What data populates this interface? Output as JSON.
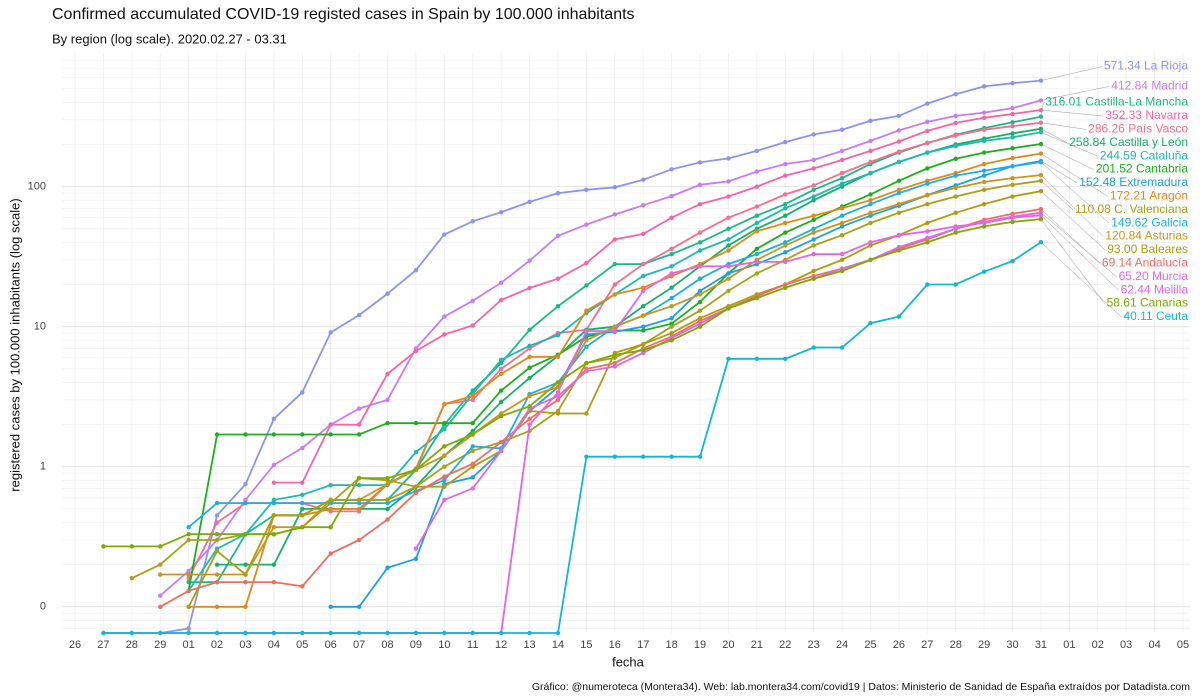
{
  "chart_data": {
    "type": "line",
    "title": "Confirmed accumulated COVID-19 registed cases in Spain by 100.000 inhabitants",
    "subtitle": "By region (log scale). 2020.02.27 - 03.31",
    "x_label": "fecha",
    "y_label": "registered cases  by 100.000 inhabitants (log scale)",
    "caption": "Gráfico: @numeroteca (Montera34). Web: lab.montera34.com/covid19 | Datos: Ministerio de Sanidad de España extraídos por Datadista.com",
    "log_scale": true,
    "grid": true,
    "categories": [
      "26",
      "27",
      "28",
      "29",
      "01",
      "02",
      "03",
      "04",
      "05",
      "06",
      "07",
      "08",
      "09",
      "10",
      "11",
      "12",
      "13",
      "14",
      "15",
      "16",
      "17",
      "18",
      "19",
      "20",
      "21",
      "22",
      "23",
      "24",
      "25",
      "26",
      "27",
      "28",
      "29",
      "30",
      "31",
      "01",
      "02",
      "03",
      "04",
      "05"
    ],
    "ylim": [
      0.065,
      900
    ],
    "yticks": [
      {
        "value": 0.1,
        "label": "0"
      },
      1,
      10,
      100
    ],
    "series": [
      {
        "name": "La Rioja",
        "color": "#8C94F0",
        "values": [
          null,
          null,
          null,
          0.065,
          0.07,
          0.45,
          0.75,
          2.2,
          3.4,
          9.1,
          12.1,
          17.2,
          25.3,
          45.5,
          56.6,
          65.7,
          77.8,
          89.9,
          95,
          99,
          112,
          133,
          149,
          159,
          180,
          208,
          236,
          255,
          295,
          320,
          392,
          457,
          520,
          548,
          571.34,
          null,
          null,
          null,
          null,
          null
        ]
      },
      {
        "name": "Madrid",
        "color": "#C77CF3",
        "values": [
          null,
          null,
          null,
          0.12,
          0.18,
          0.3,
          0.58,
          1.03,
          1.36,
          2.0,
          2.6,
          3.0,
          7.0,
          11.8,
          15.3,
          20.6,
          29.6,
          44.6,
          53.6,
          63.3,
          73.6,
          85.6,
          103,
          109,
          128,
          145,
          155,
          180,
          212,
          252,
          290,
          320,
          338,
          364,
          412.84,
          null,
          null,
          null,
          null,
          null
        ]
      },
      {
        "name": "Castilla-La Mancha",
        "color": "#1BB98A",
        "values": [
          null,
          null,
          null,
          null,
          0.15,
          0.15,
          0.33,
          0.45,
          0.45,
          0.58,
          0.58,
          0.58,
          0.95,
          2.0,
          3.5,
          5.5,
          9.5,
          14,
          19.7,
          28,
          28,
          33,
          40,
          50,
          62,
          75,
          95,
          115,
          145,
          175,
          205,
          235,
          262,
          288,
          316.01,
          null,
          null,
          null,
          null,
          null
        ]
      },
      {
        "name": "Navarra",
        "color": "#F564A9",
        "values": [
          null,
          null,
          null,
          null,
          null,
          null,
          null,
          0.77,
          0.77,
          2.0,
          2.0,
          4.6,
          6.7,
          8.8,
          10.2,
          15.5,
          18.9,
          22,
          28.5,
          42,
          46,
          60,
          75,
          85,
          100,
          120,
          135,
          155,
          180,
          210,
          250,
          285,
          310,
          330,
          352.33,
          null,
          null,
          null,
          null,
          null
        ]
      },
      {
        "name": "País Vasco",
        "color": "#F2708E",
        "values": [
          null,
          null,
          null,
          null,
          0.16,
          0.4,
          0.55,
          0.55,
          0.55,
          0.48,
          0.48,
          0.75,
          0.97,
          2.8,
          3.0,
          5.0,
          7.0,
          9.0,
          9.5,
          20,
          28,
          36,
          47,
          60,
          72,
          88,
          102,
          125,
          150,
          178,
          205,
          232,
          255,
          270,
          286.26,
          null,
          null,
          null,
          null,
          null
        ]
      },
      {
        "name": "Castilla y León",
        "color": "#16B06A",
        "values": [
          null,
          null,
          null,
          null,
          null,
          0.2,
          0.2,
          0.2,
          0.5,
          0.5,
          0.5,
          0.5,
          0.72,
          1.2,
          1.8,
          2.9,
          4.3,
          6.2,
          9.5,
          10,
          14,
          19,
          27,
          38,
          50,
          62,
          80,
          100,
          125,
          150,
          175,
          200,
          220,
          240,
          258.84,
          null,
          null,
          null,
          null,
          null
        ]
      },
      {
        "name": "Cataluña",
        "color": "#1FB9B0",
        "values": [
          null,
          null,
          null,
          null,
          0.13,
          0.26,
          0.33,
          0.58,
          0.63,
          0.74,
          0.74,
          0.74,
          1.27,
          1.85,
          3.3,
          5.8,
          7.3,
          8.7,
          12.5,
          17,
          23,
          27,
          35,
          42,
          55,
          70,
          85,
          105,
          125,
          150,
          175,
          195,
          212,
          225,
          244.59,
          null,
          null,
          null,
          null,
          null
        ]
      },
      {
        "name": "Cantabria",
        "color": "#1EAF1E",
        "values": [
          null,
          null,
          null,
          null,
          0.13,
          1.7,
          1.7,
          1.7,
          1.7,
          1.7,
          1.7,
          2.05,
          2.05,
          2.05,
          2.05,
          3.5,
          5.1,
          6.3,
          8.5,
          9.4,
          9.4,
          10.5,
          15,
          24,
          36,
          47,
          58,
          72,
          88,
          110,
          135,
          158,
          175,
          188,
          201.52,
          null,
          null,
          null,
          null,
          null
        ]
      },
      {
        "name": "Extremadura",
        "color": "#1E9FE6",
        "values": [
          null,
          null,
          null,
          null,
          null,
          null,
          null,
          null,
          null,
          0.1,
          0.1,
          0.19,
          0.22,
          0.75,
          0.84,
          1.3,
          2.5,
          3.7,
          8.8,
          9.2,
          10,
          11.5,
          18,
          24,
          28,
          34,
          42,
          52,
          62,
          73,
          87,
          102,
          120,
          140,
          152.48,
          null,
          null,
          null,
          null,
          null
        ]
      },
      {
        "name": "Aragón",
        "color": "#DF8A1A",
        "values": [
          null,
          null,
          null,
          null,
          0.1,
          0.1,
          0.1,
          0.45,
          0.45,
          0.5,
          0.5,
          0.75,
          0.95,
          2.8,
          3.2,
          4.6,
          6.1,
          6.1,
          13,
          17,
          19,
          23,
          28,
          35,
          48,
          55,
          62,
          70,
          80,
          95,
          110,
          125,
          145,
          160,
          172.21,
          null,
          null,
          null,
          null,
          null
        ]
      },
      {
        "name": "C. Valenciana",
        "color": "#A8A21A",
        "values": [
          null,
          null,
          0.16,
          0.2,
          0.3,
          0.3,
          0.33,
          0.33,
          0.37,
          0.55,
          0.83,
          0.8,
          0.72,
          1.0,
          1.3,
          1.5,
          1.8,
          2.5,
          5.5,
          6,
          7.5,
          10,
          13,
          18,
          24,
          30,
          38,
          45,
          55,
          65,
          75,
          85,
          95,
          103,
          110.08,
          null,
          null,
          null,
          null,
          null
        ]
      },
      {
        "name": "Galicia",
        "color": "#1AAFE8",
        "values": [
          null,
          null,
          null,
          null,
          0.37,
          0.55,
          0.55,
          0.55,
          0.55,
          0.55,
          0.55,
          0.55,
          0.67,
          0.8,
          1.4,
          1.35,
          3.3,
          4.0,
          7.2,
          10,
          12,
          16,
          22,
          28,
          33,
          40,
          50,
          62,
          75,
          90,
          105,
          120,
          130,
          140,
          149.62,
          null,
          null,
          null,
          null,
          null
        ]
      },
      {
        "name": "Asturias",
        "color": "#C8961A",
        "values": [
          null,
          null,
          null,
          0.17,
          0.17,
          0.17,
          0.17,
          0.37,
          0.37,
          0.58,
          0.58,
          0.75,
          0.95,
          1.2,
          1.7,
          2.4,
          3.2,
          3.7,
          8,
          10,
          12,
          14,
          17,
          22,
          30,
          38,
          47,
          55,
          65,
          75,
          87,
          98,
          108,
          115,
          120.84,
          null,
          null,
          null,
          null,
          null
        ]
      },
      {
        "name": "Baleares",
        "color": "#B09C0F",
        "values": [
          null,
          null,
          null,
          null,
          0.1,
          0.25,
          0.17,
          0.45,
          0.45,
          0.58,
          0.58,
          0.58,
          0.72,
          0.72,
          1.0,
          1.3,
          2.5,
          2.4,
          2.4,
          6.5,
          7.5,
          9,
          11.5,
          14,
          17,
          20,
          25,
          30,
          38,
          45,
          55,
          65,
          75,
          85,
          93,
          null,
          null,
          null,
          null,
          null
        ],
        "value_labels": [
          null,
          null,
          null,
          null,
          null,
          null,
          null,
          null,
          null,
          null,
          null,
          null,
          null,
          null,
          null,
          null,
          null,
          null,
          null,
          null,
          null,
          null,
          null,
          null,
          null,
          null,
          null,
          null,
          null,
          null,
          null,
          null,
          null,
          null,
          "93.00",
          null,
          null,
          null,
          null,
          null
        ]
      },
      {
        "name": "Andalucía",
        "color": "#EE6E63",
        "values": [
          null,
          null,
          null,
          0.1,
          0.13,
          0.15,
          0.15,
          0.15,
          0.14,
          0.24,
          0.3,
          0.42,
          0.65,
          0.85,
          1.05,
          1.5,
          2.2,
          3.0,
          5,
          5.5,
          7,
          8.5,
          11,
          13.5,
          16.5,
          20,
          23,
          26,
          30,
          36,
          42,
          50,
          58,
          64,
          69.14,
          null,
          null,
          null,
          null,
          null
        ]
      },
      {
        "name": "Murcia",
        "color": "#DB6BE4",
        "values": [
          null,
          null,
          null,
          null,
          null,
          null,
          null,
          null,
          null,
          null,
          null,
          null,
          0.26,
          0.58,
          0.7,
          1.3,
          2.6,
          3.2,
          4.8,
          5.2,
          6.5,
          8.3,
          10.5,
          13.5,
          16,
          19,
          22,
          26,
          30,
          37,
          43,
          50,
          56,
          61,
          65.2,
          null,
          null,
          null,
          null,
          null
        ],
        "value_labels": [
          null,
          null,
          null,
          null,
          null,
          null,
          null,
          null,
          null,
          null,
          null,
          null,
          null,
          null,
          null,
          null,
          null,
          null,
          null,
          null,
          null,
          null,
          null,
          null,
          null,
          null,
          null,
          null,
          null,
          null,
          null,
          null,
          null,
          null,
          "65.20",
          null,
          null,
          null,
          null,
          null
        ]
      },
      {
        "name": "Melilla",
        "color": "#E864E0",
        "values": [
          null,
          0.065,
          0.065,
          0.065,
          0.065,
          0.065,
          0.065,
          0.065,
          0.065,
          0.065,
          0.065,
          0.065,
          0.065,
          0.065,
          0.065,
          0.065,
          2.0,
          3.4,
          9.3,
          9.3,
          18,
          24,
          27,
          27,
          29,
          29,
          33,
          33,
          40,
          45,
          48,
          52,
          55,
          60,
          62.44,
          null,
          null,
          null,
          null,
          null
        ]
      },
      {
        "name": "Canarias",
        "color": "#7FAB00",
        "values": [
          null,
          0.27,
          0.27,
          0.27,
          0.33,
          0.33,
          0.33,
          0.33,
          0.37,
          0.37,
          0.83,
          0.83,
          0.95,
          1.4,
          1.7,
          2.3,
          2.7,
          4.0,
          5.5,
          6.3,
          6.8,
          8,
          10,
          13.5,
          16,
          19,
          22,
          25,
          30,
          35,
          40,
          47,
          52,
          56,
          58.61,
          null,
          null,
          null,
          null,
          null
        ]
      },
      {
        "name": "Ceuta",
        "color": "#14B8CC",
        "values": [
          null,
          0.065,
          0.065,
          0.065,
          0.065,
          0.065,
          0.065,
          0.065,
          0.065,
          0.065,
          0.065,
          0.065,
          0.065,
          0.065,
          0.065,
          0.065,
          0.065,
          0.065,
          1.18,
          1.18,
          1.18,
          1.18,
          1.18,
          5.9,
          5.9,
          5.9,
          7.1,
          7.1,
          10.6,
          11.8,
          20,
          20,
          24.7,
          29.4,
          40.11,
          null,
          null,
          null,
          null,
          null
        ]
      }
    ]
  }
}
